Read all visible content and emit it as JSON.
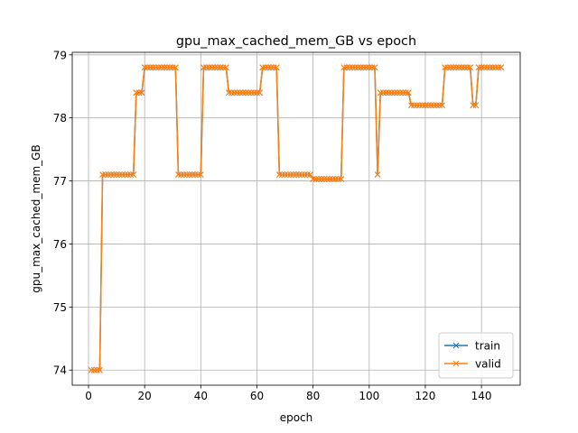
{
  "chart_data": {
    "type": "line",
    "title": "gpu_max_cached_mem_GB vs epoch",
    "x_label": "epoch",
    "y_label": "gpu_max_cached_mem_GB",
    "x": [
      1,
      2,
      3,
      4,
      5,
      6,
      7,
      8,
      9,
      10,
      11,
      12,
      13,
      14,
      15,
      16,
      17,
      18,
      19,
      20,
      21,
      22,
      23,
      24,
      25,
      26,
      27,
      28,
      29,
      30,
      31,
      32,
      33,
      34,
      35,
      36,
      37,
      38,
      39,
      40,
      41,
      42,
      43,
      44,
      45,
      46,
      47,
      48,
      49,
      50,
      51,
      52,
      53,
      54,
      55,
      56,
      57,
      58,
      59,
      60,
      61,
      62,
      63,
      64,
      65,
      66,
      67,
      68,
      69,
      70,
      71,
      72,
      73,
      74,
      75,
      76,
      77,
      78,
      79,
      80,
      81,
      82,
      83,
      84,
      85,
      86,
      87,
      88,
      89,
      90,
      91,
      92,
      93,
      94,
      95,
      96,
      97,
      98,
      99,
      100,
      101,
      102,
      103,
      104,
      105,
      106,
      107,
      108,
      109,
      110,
      111,
      112,
      113,
      114,
      115,
      116,
      117,
      118,
      119,
      120,
      121,
      122,
      123,
      124,
      125,
      126,
      127,
      128,
      129,
      130,
      131,
      132,
      133,
      134,
      135,
      136,
      137,
      138,
      139,
      140,
      141,
      142,
      143,
      144,
      145,
      146,
      147
    ],
    "series": [
      {
        "name": "train",
        "color": "#1f77b4",
        "values": [
          74,
          74,
          74,
          74,
          77.1,
          77.1,
          77.1,
          77.1,
          77.1,
          77.1,
          77.1,
          77.1,
          77.1,
          77.1,
          77.1,
          77.1,
          78.4,
          78.4,
          78.4,
          78.8,
          78.8,
          78.8,
          78.8,
          78.8,
          78.8,
          78.8,
          78.8,
          78.8,
          78.8,
          78.8,
          78.8,
          77.1,
          77.1,
          77.1,
          77.1,
          77.1,
          77.1,
          77.1,
          77.1,
          77.1,
          78.8,
          78.8,
          78.8,
          78.8,
          78.8,
          78.8,
          78.8,
          78.8,
          78.8,
          78.4,
          78.4,
          78.4,
          78.4,
          78.4,
          78.4,
          78.4,
          78.4,
          78.4,
          78.4,
          78.4,
          78.4,
          78.8,
          78.8,
          78.8,
          78.8,
          78.8,
          78.8,
          77.1,
          77.1,
          77.1,
          77.1,
          77.1,
          77.1,
          77.1,
          77.1,
          77.1,
          77.1,
          77.1,
          77.1,
          77.03,
          77.03,
          77.03,
          77.03,
          77.03,
          77.03,
          77.03,
          77.03,
          77.03,
          77.03,
          77.03,
          78.8,
          78.8,
          78.8,
          78.8,
          78.8,
          78.8,
          78.8,
          78.8,
          78.8,
          78.8,
          78.8,
          78.8,
          77.1,
          78.4,
          78.4,
          78.4,
          78.4,
          78.4,
          78.4,
          78.4,
          78.4,
          78.4,
          78.4,
          78.4,
          78.2,
          78.2,
          78.2,
          78.2,
          78.2,
          78.2,
          78.2,
          78.2,
          78.2,
          78.2,
          78.2,
          78.2,
          78.8,
          78.8,
          78.8,
          78.8,
          78.8,
          78.8,
          78.8,
          78.8,
          78.8,
          78.8,
          78.2,
          78.2,
          78.8,
          78.8,
          78.8,
          78.8,
          78.8,
          78.8,
          78.8,
          78.8,
          78.8
        ]
      },
      {
        "name": "valid",
        "color": "#ff7f0e",
        "values": [
          74,
          74,
          74,
          74,
          77.1,
          77.1,
          77.1,
          77.1,
          77.1,
          77.1,
          77.1,
          77.1,
          77.1,
          77.1,
          77.1,
          77.1,
          78.4,
          78.4,
          78.4,
          78.8,
          78.8,
          78.8,
          78.8,
          78.8,
          78.8,
          78.8,
          78.8,
          78.8,
          78.8,
          78.8,
          78.8,
          77.1,
          77.1,
          77.1,
          77.1,
          77.1,
          77.1,
          77.1,
          77.1,
          77.1,
          78.8,
          78.8,
          78.8,
          78.8,
          78.8,
          78.8,
          78.8,
          78.8,
          78.8,
          78.4,
          78.4,
          78.4,
          78.4,
          78.4,
          78.4,
          78.4,
          78.4,
          78.4,
          78.4,
          78.4,
          78.4,
          78.8,
          78.8,
          78.8,
          78.8,
          78.8,
          78.8,
          77.1,
          77.1,
          77.1,
          77.1,
          77.1,
          77.1,
          77.1,
          77.1,
          77.1,
          77.1,
          77.1,
          77.1,
          77.03,
          77.03,
          77.03,
          77.03,
          77.03,
          77.03,
          77.03,
          77.03,
          77.03,
          77.03,
          77.03,
          78.8,
          78.8,
          78.8,
          78.8,
          78.8,
          78.8,
          78.8,
          78.8,
          78.8,
          78.8,
          78.8,
          78.8,
          77.1,
          78.4,
          78.4,
          78.4,
          78.4,
          78.4,
          78.4,
          78.4,
          78.4,
          78.4,
          78.4,
          78.4,
          78.2,
          78.2,
          78.2,
          78.2,
          78.2,
          78.2,
          78.2,
          78.2,
          78.2,
          78.2,
          78.2,
          78.2,
          78.8,
          78.8,
          78.8,
          78.8,
          78.8,
          78.8,
          78.8,
          78.8,
          78.8,
          78.8,
          78.2,
          78.2,
          78.8,
          78.8,
          78.8,
          78.8,
          78.8,
          78.8,
          78.8,
          78.8,
          78.8
        ]
      }
    ],
    "xlim": [
      -5.8,
      153.8
    ],
    "xticks": [
      0,
      20,
      40,
      60,
      80,
      100,
      120,
      140
    ],
    "ylim": [
      73.76,
      79.04
    ],
    "yticks": [
      74,
      75,
      76,
      77,
      78,
      79
    ],
    "grid": true,
    "marker": "x",
    "legend": "lower right"
  }
}
